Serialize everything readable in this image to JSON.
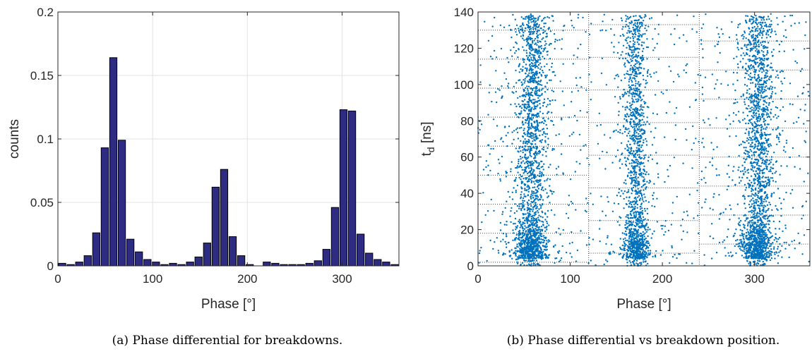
{
  "colors": {
    "bar_fill": "#2e2b82",
    "bar_edge": "#000000",
    "scatter": "#0072bd",
    "grid": "#e3e3e3",
    "axis": "#262626"
  },
  "chart_data": [
    {
      "type": "bar",
      "xlabel": "Phase [°]",
      "ylabel": "counts",
      "xlim": [
        0,
        360
      ],
      "ylim": [
        0,
        0.2
      ],
      "xticks": [
        0,
        100,
        200,
        300
      ],
      "yticks": [
        0,
        0.05,
        0.1,
        0.15,
        0.2
      ],
      "ytick_labels": [
        "0",
        "0.05",
        "0.1",
        "0.15",
        "0.2"
      ],
      "grid": true,
      "bin_width": 9,
      "x": [
        4.5,
        13.5,
        22.5,
        31.5,
        40.5,
        49.5,
        58.5,
        67.5,
        76.5,
        85.5,
        94.5,
        103.5,
        112.5,
        121.5,
        130.5,
        139.5,
        148.5,
        157.5,
        166.5,
        175.5,
        184.5,
        193.5,
        202.5,
        211.5,
        220.5,
        229.5,
        238.5,
        247.5,
        256.5,
        265.5,
        274.5,
        283.5,
        292.5,
        301.5,
        310.5,
        319.5,
        328.5,
        337.5,
        346.5,
        355.5
      ],
      "values": [
        0.002,
        0.001,
        0.003,
        0.008,
        0.026,
        0.093,
        0.164,
        0.099,
        0.021,
        0.011,
        0.005,
        0.003,
        0.001,
        0.002,
        0.001,
        0.003,
        0.007,
        0.018,
        0.062,
        0.076,
        0.023,
        0.008,
        0.001,
        0.0,
        0.003,
        0.002,
        0.001,
        0.001,
        0.001,
        0.002,
        0.004,
        0.013,
        0.046,
        0.123,
        0.122,
        0.025,
        0.01,
        0.005,
        0.003,
        0.001
      ],
      "caption": "(a) Phase differential for breakdowns."
    },
    {
      "type": "scatter",
      "xlabel": "Phase [°]",
      "ylabel_main": "t",
      "ylabel_sub": "d",
      "ylabel_unit": " [ns]",
      "xlim": [
        0,
        360
      ],
      "ylim": [
        0,
        140
      ],
      "xticks": [
        0,
        100,
        200,
        300
      ],
      "yticks": [
        0,
        20,
        40,
        60,
        80,
        100,
        120,
        140
      ],
      "grid": false,
      "clusters": [
        {
          "center": 58,
          "spread": 8.5
        },
        {
          "center": 171,
          "spread": 6.5
        },
        {
          "center": 304,
          "spread": 8.5
        }
      ],
      "segment_boundaries": [
        120,
        240
      ],
      "caption": "(b) Phase differential vs breakdown position."
    }
  ]
}
